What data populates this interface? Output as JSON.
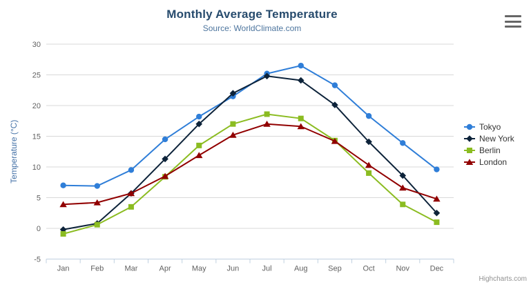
{
  "chart": {
    "title": "Monthly Average Temperature",
    "subtitle": "Source: WorldClimate.com",
    "credits": "Highcharts.com"
  },
  "chart_data": {
    "type": "line",
    "title": "Monthly Average Temperature",
    "subtitle": "Source: WorldClimate.com",
    "xlabel": "",
    "ylabel": "Temperature (°C)",
    "ylim": [
      -5,
      30
    ],
    "yticks": [
      -5,
      0,
      5,
      10,
      15,
      20,
      25,
      30
    ],
    "grid": true,
    "legend_position": "right",
    "categories": [
      "Jan",
      "Feb",
      "Mar",
      "Apr",
      "May",
      "Jun",
      "Jul",
      "Aug",
      "Sep",
      "Oct",
      "Nov",
      "Dec"
    ],
    "series": [
      {
        "name": "Tokyo",
        "color": "#2f7ed8",
        "marker": "circle",
        "values": [
          7.0,
          6.9,
          9.5,
          14.5,
          18.2,
          21.5,
          25.2,
          26.5,
          23.3,
          18.3,
          13.9,
          9.6
        ]
      },
      {
        "name": "New York",
        "color": "#0d233a",
        "marker": "diamond",
        "values": [
          -0.2,
          0.8,
          5.7,
          11.3,
          17.0,
          22.0,
          24.8,
          24.1,
          20.1,
          14.1,
          8.6,
          2.5
        ]
      },
      {
        "name": "Berlin",
        "color": "#8bbc21",
        "marker": "square",
        "values": [
          -0.9,
          0.6,
          3.5,
          8.4,
          13.5,
          17.0,
          18.6,
          17.9,
          14.3,
          9.0,
          3.9,
          1.0
        ]
      },
      {
        "name": "London",
        "color": "#910000",
        "marker": "triangle",
        "values": [
          3.9,
          4.2,
          5.7,
          8.5,
          11.9,
          15.2,
          17.0,
          16.6,
          14.2,
          10.3,
          6.6,
          4.8
        ]
      }
    ],
    "colors": {
      "grid_line": "#d8d8d8",
      "axis_line": "#c0d0e0",
      "tick_label": "#606060",
      "axis_title": "#4572a7",
      "title": "#274b6d",
      "subtitle": "#4d759e",
      "legend_text": "#333333",
      "credits_text": "#909090"
    }
  }
}
